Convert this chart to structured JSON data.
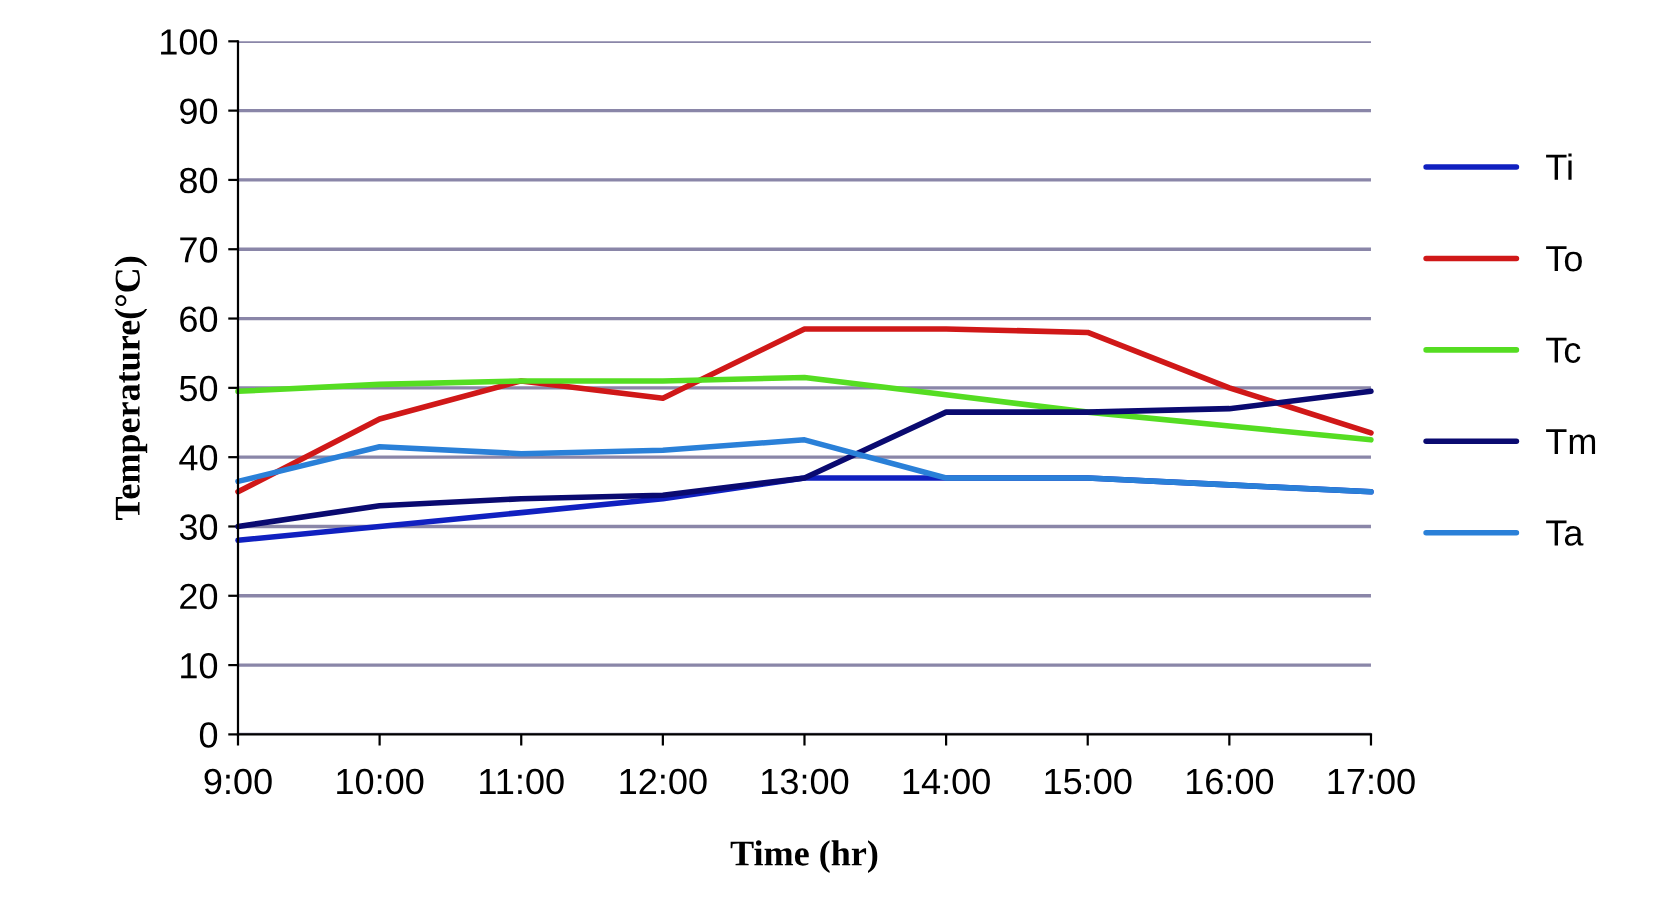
{
  "chart_data": {
    "type": "line",
    "xlabel": "Time (hr)",
    "ylabel": "Temperature(°C)",
    "x": [
      9,
      10,
      11,
      12,
      13,
      14,
      15,
      16,
      17
    ],
    "xlim": [
      9,
      17
    ],
    "xticks": [
      {
        "value": 9,
        "label": "9:00"
      },
      {
        "value": 10,
        "label": "10:00"
      },
      {
        "value": 11,
        "label": "11:00"
      },
      {
        "value": 12,
        "label": "12:00"
      },
      {
        "value": 13,
        "label": "13:00"
      },
      {
        "value": 14,
        "label": "14:00"
      },
      {
        "value": 15,
        "label": "15:00"
      },
      {
        "value": 16,
        "label": "16:00"
      },
      {
        "value": 17,
        "label": "17:00"
      }
    ],
    "ylim": [
      0,
      100
    ],
    "yticks": [
      0,
      10,
      20,
      30,
      40,
      50,
      60,
      70,
      80,
      90,
      100
    ],
    "grid": "y",
    "legend": "right",
    "marker": "none",
    "line_style": "solid",
    "series": [
      {
        "name": "Ti",
        "color": "#1020c0",
        "values": [
          28,
          30,
          32,
          34,
          37,
          37,
          37,
          36,
          35
        ]
      },
      {
        "name": "To",
        "color": "#d01818",
        "values": [
          35,
          45.5,
          51,
          48.5,
          58.5,
          58.5,
          58,
          50,
          43.5
        ]
      },
      {
        "name": "Tc",
        "color": "#55dd22",
        "values": [
          49.5,
          50.5,
          51,
          51,
          51.5,
          49,
          46.5,
          44.5,
          42.5
        ]
      },
      {
        "name": "Tm",
        "color": "#0a0a70",
        "values": [
          30,
          33,
          34,
          34.5,
          37,
          46.5,
          46.5,
          47,
          49.5
        ]
      },
      {
        "name": "Ta",
        "color": "#2a80d8",
        "values": [
          36.5,
          41.5,
          40.5,
          41,
          42.5,
          37,
          37,
          36,
          35
        ]
      }
    ]
  }
}
